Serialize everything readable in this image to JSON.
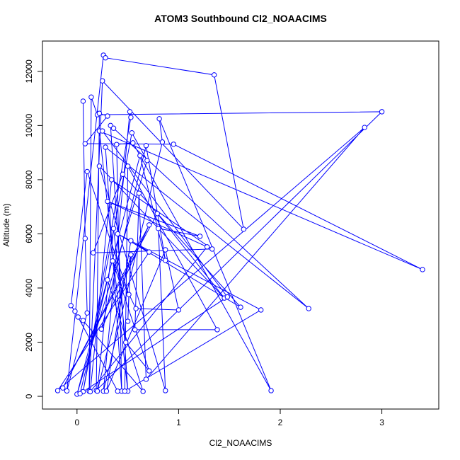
{
  "chart_data": {
    "type": "line",
    "title": "ATOM3 Southbound Cl2_NOAACIMS",
    "x_label": "Cl2_NOAACIMS",
    "y_label": "Altitude (m)",
    "color": "#0000ff",
    "markers": true,
    "xlim": [
      -0.34,
      3.56
    ],
    "ylim": [
      -470,
      13120
    ],
    "xticks": [
      0,
      1,
      2,
      3
    ],
    "yticks": [
      0,
      2000,
      4000,
      6000,
      8000,
      10000,
      12000
    ],
    "x": [
      0.06,
      0.08,
      0.1,
      -0.1,
      0.26,
      0.28,
      1.35,
      1.64,
      0.25,
      0.12,
      0.14,
      0.2,
      3.0,
      0.19,
      0.22,
      0.3,
      0.08,
      0.95,
      3.4,
      0.22,
      0.5,
      0.33,
      0.36,
      2.28,
      0.28,
      0.44,
      0.39,
      0.55,
      1.91,
      0.81,
      0.84,
      0.26,
      0.52,
      0.53,
      0.06,
      0.54,
      0.69,
      0.0,
      0.62,
      0.87,
      0.68,
      0.24,
      0.71,
      -0.14,
      0.79,
      1.45,
      0.22,
      0.87,
      0.8,
      1.21,
      0.3,
      1.28,
      0.13,
      0.34,
      1.33,
      0.16,
      0.45,
      1.61,
      0.4,
      1.81,
      0.47,
      0.5,
      1.38,
      0.57,
      0.61,
      0.68,
      2.83,
      -0.19,
      0.71,
      0.53,
      0.29,
      0.87,
      1.0,
      0.58,
      0.35,
      0.71,
      0.48,
      0.36,
      0.2,
      0.53,
      0.5,
      0.51,
      0.1,
      -0.06,
      -0.02,
      0.4,
      0.01,
      0.06,
      0.65,
      0.3,
      0.03,
      1.48,
      0.25
    ],
    "values": [
      10900,
      5830,
      3080,
      200,
      12600,
      12500,
      11870,
      6170,
      11650,
      190,
      11050,
      10400,
      10510,
      220,
      10450,
      10350,
      9330,
      9310,
      4680,
      9800,
      190,
      10000,
      9900,
      3240,
      9200,
      190,
      9300,
      9360,
      210,
      10250,
      9390,
      190,
      10510,
      10300,
      170,
      9730,
      8710,
      80,
      8890,
      5020,
      9260,
      2480,
      6330,
      310,
      6750,
      3630,
      8500,
      210,
      6200,
      5910,
      7200,
      5520,
      170,
      8000,
      5440,
      5300,
      8200,
      3290,
      6000,
      3190,
      190,
      8500,
      2460,
      2460,
      7500,
      630,
      9930,
      210,
      5330,
      5750,
      190,
      5410,
      3190,
      3240,
      5000,
      940,
      1990,
      6200,
      190,
      5230,
      2770,
      3760,
      8300,
      3350,
      3140,
      190,
      2930,
      2800,
      180,
      4300,
      100,
      3670,
      9800
    ]
  }
}
